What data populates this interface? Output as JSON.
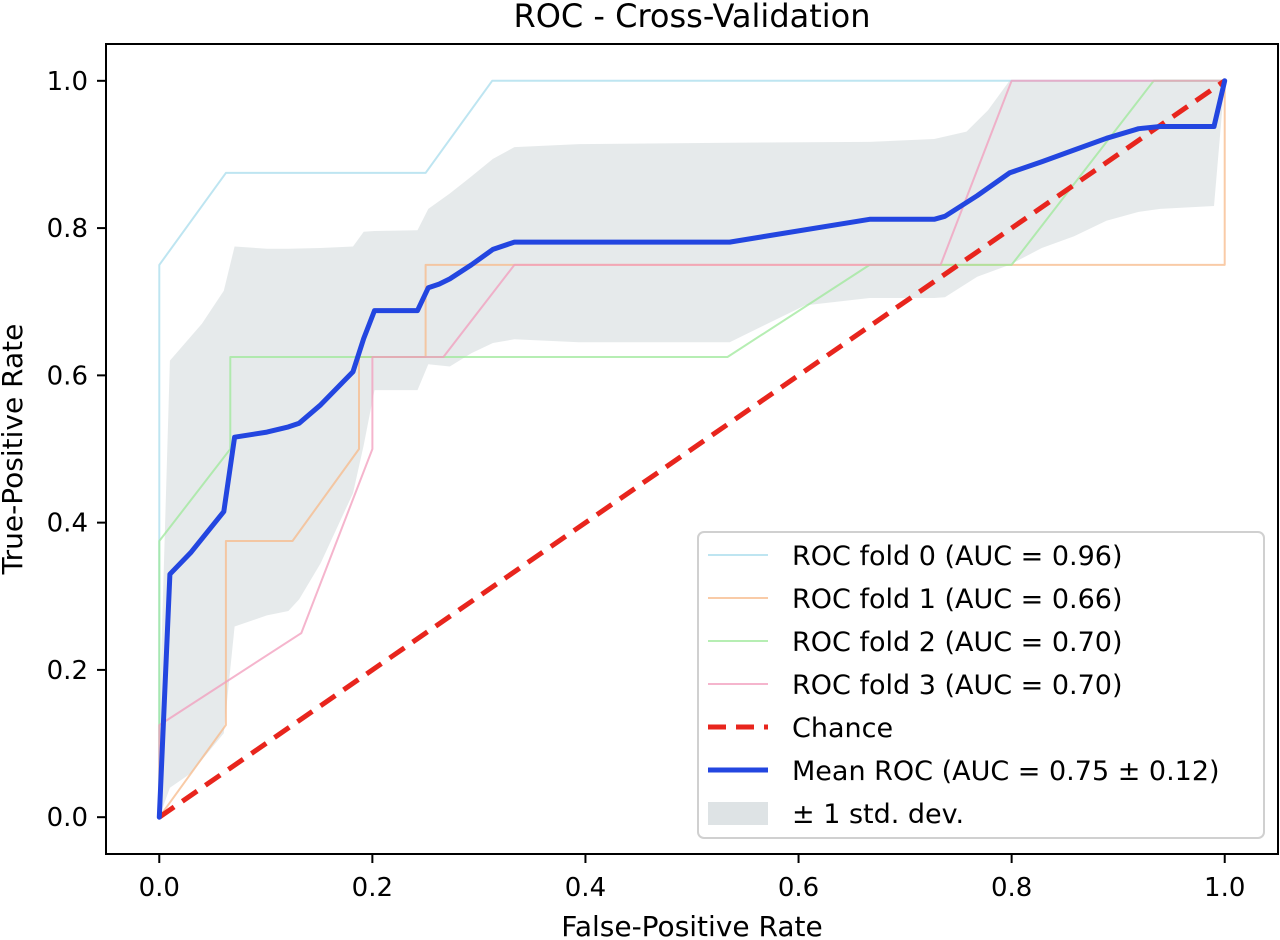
{
  "chart_data": {
    "type": "line",
    "title": "ROC - Cross-Validation",
    "xlabel": "False-Positive Rate",
    "ylabel": "True-Positive Rate",
    "xlim": [
      -0.05,
      1.05
    ],
    "ylim": [
      -0.05,
      1.05
    ],
    "xticks": [
      0.0,
      0.2,
      0.4,
      0.6,
      0.8,
      1.0
    ],
    "yticks": [
      0.0,
      0.2,
      0.4,
      0.6,
      0.8,
      1.0
    ],
    "xtick_labels": [
      "0.0",
      "0.2",
      "0.4",
      "0.6",
      "0.8",
      "1.0"
    ],
    "ytick_labels": [
      "0.0",
      "0.2",
      "0.4",
      "0.6",
      "0.8",
      "1.0"
    ],
    "grid": false,
    "legend_position": "lower right",
    "series": [
      {
        "name": "ROC fold 0 (AUC = 0.96)",
        "color": "#a8dcec",
        "opacity": 0.75,
        "width": 2,
        "points": [
          [
            0.0,
            0.0
          ],
          [
            0.0,
            0.75
          ],
          [
            0.0625,
            0.875
          ],
          [
            0.25,
            0.875
          ],
          [
            0.3125,
            1.0
          ],
          [
            1.0,
            1.0
          ]
        ]
      },
      {
        "name": "ROC fold 1 (AUC = 0.66)",
        "color": "#f7b98a",
        "opacity": 0.75,
        "width": 2,
        "points": [
          [
            0.0,
            0.0
          ],
          [
            0.0625,
            0.125
          ],
          [
            0.0625,
            0.375
          ],
          [
            0.125,
            0.375
          ],
          [
            0.1875,
            0.5
          ],
          [
            0.1875,
            0.625
          ],
          [
            0.25,
            0.625
          ],
          [
            0.25,
            0.75
          ],
          [
            1.0,
            0.75
          ],
          [
            1.0,
            1.0
          ]
        ]
      },
      {
        "name": "ROC fold 2 (AUC = 0.70)",
        "color": "#9ee89a",
        "opacity": 0.75,
        "width": 2,
        "points": [
          [
            0.0,
            0.0
          ],
          [
            0.0,
            0.375
          ],
          [
            0.0667,
            0.5
          ],
          [
            0.0667,
            0.625
          ],
          [
            0.5333,
            0.625
          ],
          [
            0.6667,
            0.75
          ],
          [
            0.8,
            0.75
          ],
          [
            0.9333,
            1.0
          ],
          [
            1.0,
            1.0
          ]
        ]
      },
      {
        "name": "ROC fold 3 (AUC = 0.70)",
        "color": "#f29cbc",
        "opacity": 0.75,
        "width": 2,
        "points": [
          [
            0.0,
            0.0
          ],
          [
            0.0,
            0.125
          ],
          [
            0.1333,
            0.25
          ],
          [
            0.2,
            0.5
          ],
          [
            0.2,
            0.625
          ],
          [
            0.2667,
            0.625
          ],
          [
            0.3333,
            0.75
          ],
          [
            0.7333,
            0.75
          ],
          [
            0.8,
            1.0
          ],
          [
            1.0,
            1.0
          ]
        ]
      },
      {
        "name": "Chance",
        "color": "#e8251d",
        "opacity": 1,
        "width": 5,
        "dashed": true,
        "points": [
          [
            0.0,
            0.0
          ],
          [
            1.0,
            1.0
          ]
        ]
      },
      {
        "name": "Mean ROC (AUC = 0.75 ± 0.12)",
        "color": "#2346e0",
        "opacity": 1,
        "width": 5,
        "points": [
          [
            0.0,
            0.0
          ],
          [
            0.01,
            0.33
          ],
          [
            0.03,
            0.36
          ],
          [
            0.0606,
            0.415
          ],
          [
            0.0707,
            0.516
          ],
          [
            0.101,
            0.523
          ],
          [
            0.1212,
            0.53
          ],
          [
            0.1313,
            0.535
          ],
          [
            0.1515,
            0.56
          ],
          [
            0.1818,
            0.605
          ],
          [
            0.1919,
            0.65
          ],
          [
            0.202,
            0.688
          ],
          [
            0.2424,
            0.688
          ],
          [
            0.2525,
            0.719
          ],
          [
            0.2626,
            0.724
          ],
          [
            0.2727,
            0.731
          ],
          [
            0.2929,
            0.75
          ],
          [
            0.3131,
            0.771
          ],
          [
            0.3333,
            0.781
          ],
          [
            0.5354,
            0.781
          ],
          [
            0.6667,
            0.812
          ],
          [
            0.7273,
            0.812
          ],
          [
            0.7374,
            0.816
          ],
          [
            0.7677,
            0.844
          ],
          [
            0.798,
            0.875
          ],
          [
            0.8283,
            0.89
          ],
          [
            0.8586,
            0.906
          ],
          [
            0.8889,
            0.922
          ],
          [
            0.9192,
            0.935
          ],
          [
            0.9394,
            0.938
          ],
          [
            0.9899,
            0.938
          ],
          [
            1.0,
            1.0
          ]
        ]
      }
    ],
    "std_band": {
      "name": "± 1 std. dev.",
      "color": "#c8d1d3",
      "opacity": 0.45,
      "upper": [
        [
          0.0,
          0.13
        ],
        [
          0.01,
          0.62
        ],
        [
          0.04,
          0.67
        ],
        [
          0.0606,
          0.715
        ],
        [
          0.0707,
          0.775
        ],
        [
          0.101,
          0.772
        ],
        [
          0.1212,
          0.772
        ],
        [
          0.1515,
          0.773
        ],
        [
          0.1818,
          0.775
        ],
        [
          0.1919,
          0.795
        ],
        [
          0.202,
          0.796
        ],
        [
          0.2424,
          0.797
        ],
        [
          0.2525,
          0.826
        ],
        [
          0.2727,
          0.847
        ],
        [
          0.2929,
          0.87
        ],
        [
          0.3131,
          0.894
        ],
        [
          0.3333,
          0.91
        ],
        [
          0.3939,
          0.914
        ],
        [
          0.5354,
          0.916
        ],
        [
          0.6667,
          0.917
        ],
        [
          0.7273,
          0.921
        ],
        [
          0.7576,
          0.931
        ],
        [
          0.7778,
          0.96
        ],
        [
          0.798,
          1.0
        ],
        [
          1.0,
          1.0
        ]
      ],
      "lower": [
        [
          1.0,
          1.0
        ],
        [
          0.9899,
          0.83
        ],
        [
          0.9394,
          0.826
        ],
        [
          0.9192,
          0.822
        ],
        [
          0.8889,
          0.81
        ],
        [
          0.8586,
          0.789
        ],
        [
          0.8283,
          0.773
        ],
        [
          0.798,
          0.75
        ],
        [
          0.7677,
          0.734
        ],
        [
          0.7374,
          0.706
        ],
        [
          0.7273,
          0.705
        ],
        [
          0.6667,
          0.705
        ],
        [
          0.6061,
          0.695
        ],
        [
          0.5354,
          0.645
        ],
        [
          0.3939,
          0.645
        ],
        [
          0.3333,
          0.649
        ],
        [
          0.3131,
          0.644
        ],
        [
          0.2929,
          0.63
        ],
        [
          0.2727,
          0.612
        ],
        [
          0.2525,
          0.615
        ],
        [
          0.2424,
          0.58
        ],
        [
          0.202,
          0.58
        ],
        [
          0.1919,
          0.505
        ],
        [
          0.1818,
          0.44
        ],
        [
          0.1515,
          0.345
        ],
        [
          0.1313,
          0.296
        ],
        [
          0.1212,
          0.28
        ],
        [
          0.101,
          0.274
        ],
        [
          0.0707,
          0.259
        ],
        [
          0.0606,
          0.114
        ],
        [
          0.03,
          0.06
        ],
        [
          0.01,
          0.04
        ],
        [
          0.0,
          0.0
        ]
      ]
    }
  }
}
